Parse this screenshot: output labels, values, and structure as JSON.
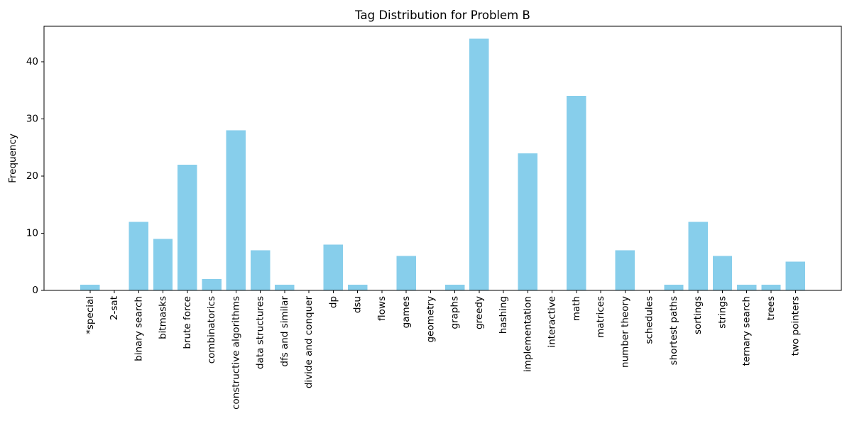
{
  "chart_data": {
    "type": "bar",
    "title": "Tag Distribution for Problem B",
    "xlabel": "",
    "ylabel": "Frequency",
    "categories": [
      "*special",
      "2-sat",
      "binary search",
      "bitmasks",
      "brute force",
      "combinatorics",
      "constructive algorithms",
      "data structures",
      "dfs and similar",
      "divide and conquer",
      "dp",
      "dsu",
      "flows",
      "games",
      "geometry",
      "graphs",
      "greedy",
      "hashing",
      "implementation",
      "interactive",
      "math",
      "matrices",
      "number theory",
      "schedules",
      "shortest paths",
      "sortings",
      "strings",
      "ternary search",
      "trees",
      "two pointers"
    ],
    "values": [
      1,
      0,
      12,
      9,
      22,
      2,
      28,
      7,
      1,
      0,
      8,
      1,
      0,
      6,
      0,
      1,
      44,
      0,
      24,
      0,
      34,
      0,
      7,
      0,
      1,
      12,
      6,
      1,
      1,
      5
    ],
    "yticks": [
      0,
      10,
      20,
      30,
      40
    ],
    "ylim": [
      0,
      46.2
    ],
    "bar_rel_width": 0.8,
    "grid": false,
    "legend": null,
    "bar_color": "#87CEEB",
    "axis_color": "#000000",
    "background_color": "#ffffff",
    "x_tick_rotation_deg": 90
  }
}
